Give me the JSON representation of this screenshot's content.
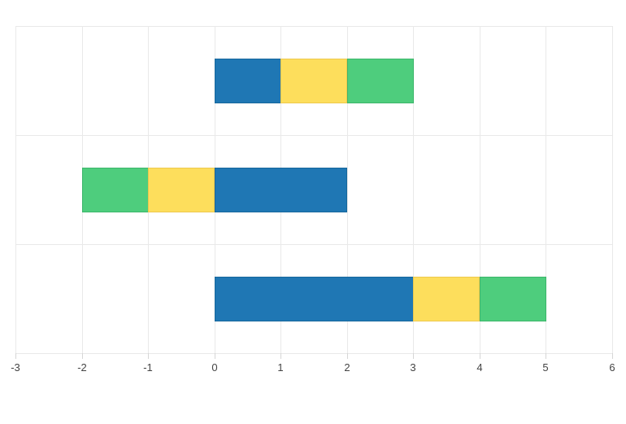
{
  "chart_data": {
    "type": "bar",
    "orientation": "horizontal",
    "barmode": "stacked",
    "title": "",
    "xlabel": "",
    "ylabel": "",
    "xlim": [
      -3,
      6
    ],
    "x_ticks": [
      -3,
      -2,
      -1,
      0,
      1,
      2,
      3,
      4,
      5,
      6
    ],
    "x_tick_labels": [
      "-3",
      "-2",
      "-1",
      "0",
      "1",
      "2",
      "3",
      "4",
      "5",
      "6"
    ],
    "grid": true,
    "legend_position": "none",
    "rows": 3,
    "series": [
      {
        "name": "blue",
        "fill": "#1f77b4",
        "stroke": "#17679c",
        "values": [
          1,
          2,
          3
        ]
      },
      {
        "name": "yellow",
        "fill": "#fdde5c",
        "stroke": "#eec94e",
        "values": [
          1,
          -1,
          1
        ]
      },
      {
        "name": "green",
        "fill": "#4ecd7d",
        "stroke": "#3cb66a",
        "values": [
          1,
          -1,
          1
        ]
      }
    ],
    "segments": [
      [
        {
          "series": "blue",
          "from": 0,
          "to": 1
        },
        {
          "series": "yellow",
          "from": 1,
          "to": 2
        },
        {
          "series": "green",
          "from": 2,
          "to": 3
        }
      ],
      [
        {
          "series": "green",
          "from": -2,
          "to": -1
        },
        {
          "series": "yellow",
          "from": -1,
          "to": 0
        },
        {
          "series": "blue",
          "from": 0,
          "to": 2
        }
      ],
      [
        {
          "series": "blue",
          "from": 0,
          "to": 3
        },
        {
          "series": "yellow",
          "from": 3,
          "to": 4
        },
        {
          "series": "green",
          "from": 4,
          "to": 5
        }
      ]
    ]
  },
  "colors": {
    "background": "#ffffff",
    "gridline": "#e9e9e9",
    "tick_mark": "#d6d6d6",
    "tick_label": "#444444"
  }
}
